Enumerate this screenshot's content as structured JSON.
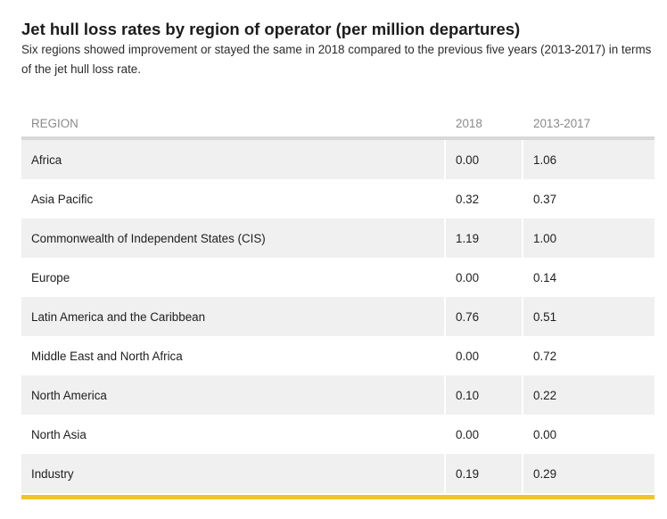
{
  "title": "Jet hull loss rates by region of operator (per million departures)",
  "subtitle": "Six regions showed improvement or stayed the same in 2018 compared to the previous five years (2013-2017) in terms of the jet hull loss rate.",
  "colors": {
    "accent": "#f2c230",
    "row_shade": "#f0f0f0",
    "header_text": "#8a8a8a"
  },
  "chart_data": {
    "type": "table",
    "title": "Jet hull loss rates by region of operator (per million departures)",
    "subtitle": "Six regions showed improvement or stayed the same in 2018 compared to the previous five years (2013-2017) in terms of the jet hull loss rate.",
    "columns": [
      "REGION",
      "2018",
      "2013-2017"
    ],
    "rows": [
      {
        "region": "Africa",
        "v2018": "0.00",
        "v2013_2017": "1.06"
      },
      {
        "region": "Asia Pacific",
        "v2018": "0.32",
        "v2013_2017": "0.37"
      },
      {
        "region": "Commonwealth of Independent States (CIS)",
        "v2018": "1.19",
        "v2013_2017": "1.00"
      },
      {
        "region": "Europe",
        "v2018": "0.00",
        "v2013_2017": "0.14"
      },
      {
        "region": "Latin America and the Caribbean",
        "v2018": "0.76",
        "v2013_2017": "0.51"
      },
      {
        "region": "Middle East and North Africa",
        "v2018": "0.00",
        "v2013_2017": "0.72"
      },
      {
        "region": "North America",
        "v2018": "0.10",
        "v2013_2017": "0.22"
      },
      {
        "region": "North Asia",
        "v2018": "0.00",
        "v2013_2017": "0.00"
      },
      {
        "region": "Industry",
        "v2018": "0.19",
        "v2013_2017": "0.29"
      }
    ]
  }
}
